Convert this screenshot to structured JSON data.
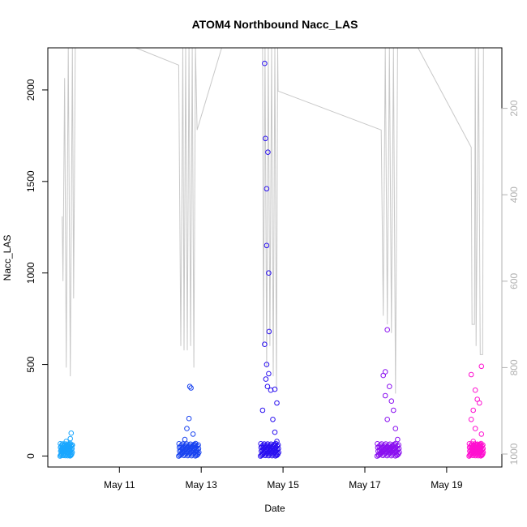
{
  "chart_data": {
    "type": "scatter",
    "title": "ATOM4 Northbound Nacc_LAS",
    "xlabel": "Date",
    "ylabel": "Nacc_LAS",
    "x_ticks": [
      "May 11",
      "May 13",
      "May 15",
      "May 17",
      "May 19"
    ],
    "x_tick_values": [
      11,
      13,
      15,
      17,
      19
    ],
    "xlim": [
      9.25,
      20.35
    ],
    "ylim": [
      -60,
      2230
    ],
    "y_ticks": [
      0,
      500,
      1000,
      1500,
      2000
    ],
    "grid": false,
    "right_axis": {
      "label": "",
      "ticks": [
        200,
        400,
        600,
        800,
        1000
      ],
      "lim": [
        60,
        1030
      ],
      "reversed": true,
      "color": "#b0b0b0"
    },
    "series": [
      {
        "color": "#1aa7ff",
        "clusters": [
          {
            "x_range": [
              9.55,
              9.85
            ],
            "points": [
              [
                9.6,
                30
              ],
              [
                9.65,
                55
              ],
              [
                9.7,
                80
              ],
              [
                9.72,
                20
              ],
              [
                9.75,
                45
              ],
              [
                9.8,
                95
              ],
              [
                9.82,
                125
              ],
              [
                9.85,
                60
              ]
            ]
          }
        ]
      },
      {
        "color": "#1a44f0",
        "clusters": [
          {
            "x_range": [
              12.45,
              12.95
            ],
            "points": [
              [
                12.55,
                40
              ],
              [
                12.6,
                90
              ],
              [
                12.65,
                150
              ],
              [
                12.7,
                205
              ],
              [
                12.72,
                380
              ],
              [
                12.75,
                372
              ],
              [
                12.8,
                120
              ],
              [
                12.85,
                60
              ],
              [
                12.9,
                25
              ]
            ]
          }
        ]
      },
      {
        "color": "#2a10f0",
        "clusters": [
          {
            "x_range": [
              14.45,
              14.9
            ],
            "points": [
              [
                14.55,
                2145
              ],
              [
                14.57,
                1735
              ],
              [
                14.6,
                1460
              ],
              [
                14.6,
                1150
              ],
              [
                14.63,
                1660
              ],
              [
                14.65,
                1000
              ],
              [
                14.66,
                680
              ],
              [
                14.55,
                610
              ],
              [
                14.6,
                500
              ],
              [
                14.65,
                450
              ],
              [
                14.58,
                420
              ],
              [
                14.62,
                380
              ],
              [
                14.7,
                360
              ],
              [
                14.8,
                365
              ],
              [
                14.85,
                290
              ],
              [
                14.5,
                250
              ],
              [
                14.75,
                200
              ],
              [
                14.8,
                130
              ],
              [
                14.85,
                80
              ]
            ]
          }
        ]
      },
      {
        "color": "#8a10f0",
        "clusters": [
          {
            "x_range": [
              17.3,
              17.85
            ],
            "points": [
              [
                17.45,
                440
              ],
              [
                17.5,
                460
              ],
              [
                17.55,
                690
              ],
              [
                17.6,
                380
              ],
              [
                17.5,
                330
              ],
              [
                17.65,
                300
              ],
              [
                17.7,
                250
              ],
              [
                17.55,
                200
              ],
              [
                17.75,
                150
              ],
              [
                17.8,
                90
              ],
              [
                17.6,
                30
              ],
              [
                17.7,
                40
              ]
            ]
          }
        ]
      },
      {
        "color": "#ff10d0",
        "clusters": [
          {
            "x_range": [
              19.55,
              19.9
            ],
            "points": [
              [
                19.6,
                445
              ],
              [
                19.85,
                490
              ],
              [
                19.7,
                360
              ],
              [
                19.75,
                310
              ],
              [
                19.65,
                250
              ],
              [
                19.8,
                290
              ],
              [
                19.6,
                200
              ],
              [
                19.7,
                150
              ],
              [
                19.85,
                120
              ],
              [
                19.65,
                80
              ],
              [
                19.75,
                60
              ]
            ]
          }
        ]
      }
    ],
    "overlay_line": {
      "color": "#c8c8c8",
      "axis": "right",
      "points": [
        [
          9.6,
          450
        ],
        [
          9.62,
          600
        ],
        [
          9.66,
          130
        ],
        [
          9.7,
          800
        ],
        [
          9.75,
          60
        ],
        [
          9.8,
          820
        ],
        [
          9.85,
          60
        ],
        [
          9.88,
          640
        ],
        [
          9.9,
          370
        ],
        [
          9.92,
          60
        ],
        [
          9.95,
          60
        ],
        [
          11.4,
          60
        ],
        [
          12.45,
          100
        ],
        [
          12.5,
          750
        ],
        [
          12.55,
          60
        ],
        [
          12.58,
          760
        ],
        [
          12.62,
          60
        ],
        [
          12.66,
          760
        ],
        [
          12.7,
          60
        ],
        [
          12.74,
          750
        ],
        [
          12.78,
          60
        ],
        [
          12.82,
          800
        ],
        [
          12.86,
          60
        ],
        [
          12.9,
          250
        ],
        [
          13.5,
          60
        ],
        [
          14.5,
          60
        ],
        [
          14.52,
          750
        ],
        [
          14.56,
          60
        ],
        [
          14.6,
          800
        ],
        [
          14.64,
          60
        ],
        [
          14.68,
          750
        ],
        [
          14.72,
          60
        ],
        [
          14.76,
          820
        ],
        [
          14.8,
          60
        ],
        [
          14.84,
          850
        ],
        [
          14.87,
          60
        ],
        [
          14.88,
          160
        ],
        [
          17.4,
          250
        ],
        [
          17.45,
          680
        ],
        [
          17.5,
          60
        ],
        [
          17.55,
          700
        ],
        [
          17.6,
          60
        ],
        [
          17.65,
          720
        ],
        [
          17.7,
          60
        ],
        [
          17.75,
          860
        ],
        [
          17.8,
          60
        ],
        [
          17.85,
          60
        ],
        [
          18.3,
          60
        ],
        [
          19.6,
          290
        ],
        [
          19.62,
          700
        ],
        [
          19.68,
          700
        ],
        [
          19.7,
          60
        ],
        [
          19.72,
          750
        ],
        [
          19.78,
          60
        ],
        [
          19.82,
          770
        ],
        [
          19.88,
          770
        ],
        [
          19.9,
          60
        ],
        [
          19.95,
          60
        ]
      ]
    }
  }
}
